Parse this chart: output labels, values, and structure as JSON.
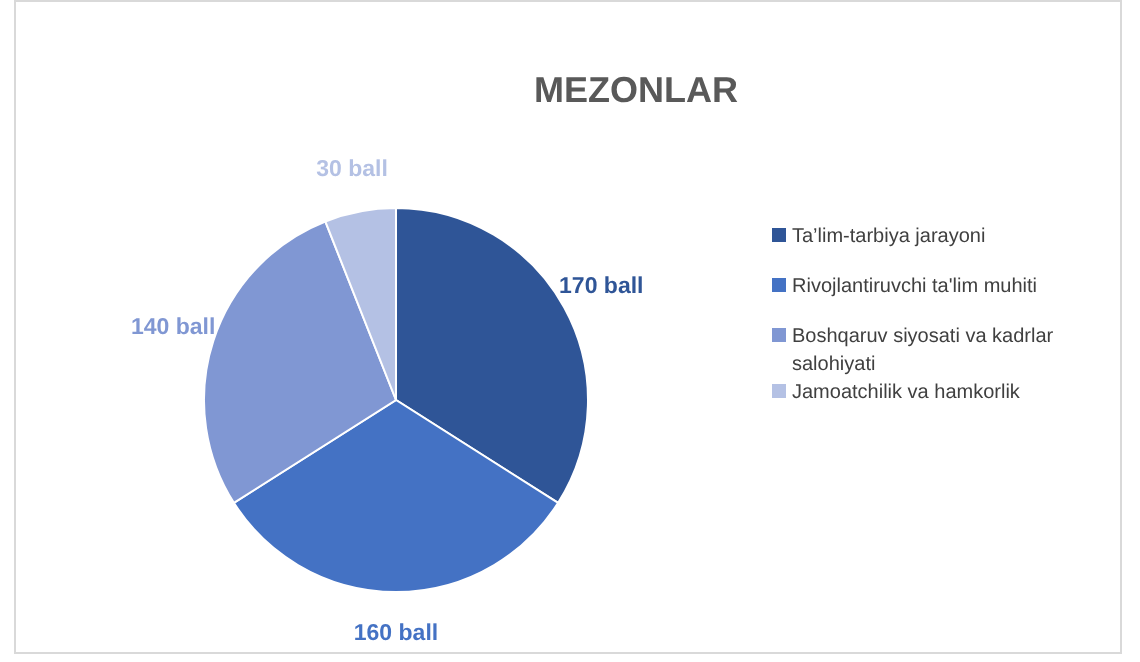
{
  "chart_data": {
    "type": "pie",
    "title": "MEZONLAR",
    "categories": [
      "Ta’lim-tarbiya jarayoni",
      "Rivojlantiruvchi ta'lim muhiti",
      "Boshqaruv siyosati va kadrlar salohiyati",
      "Jamoatchilik va hamkorlik"
    ],
    "values": [
      170,
      160,
      140,
      30
    ],
    "colors": [
      "#2f5597",
      "#4472c4",
      "#8097d3",
      "#b4c1e4"
    ],
    "value_labels": [
      "170 ball",
      "160 ball",
      "140 ball",
      "30 ball"
    ],
    "legend": "right"
  }
}
